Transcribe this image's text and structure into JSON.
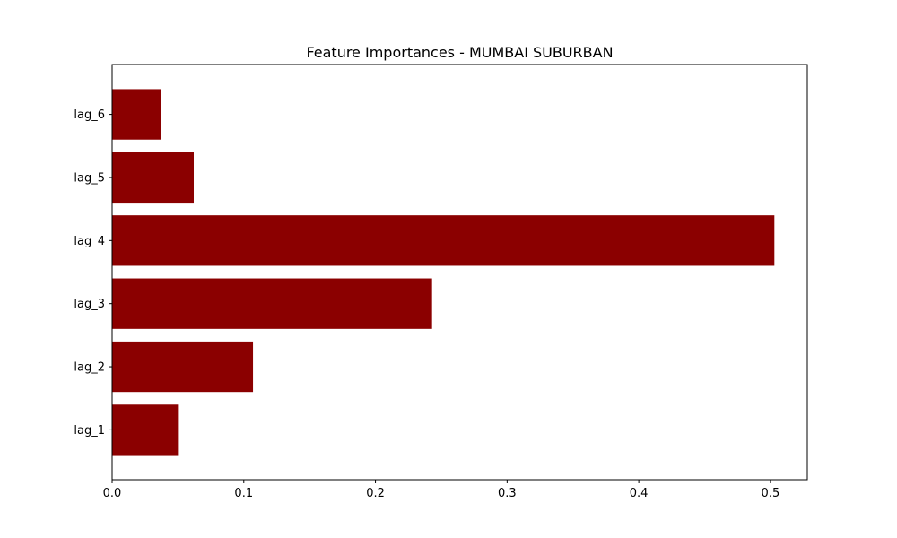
{
  "chart_data": {
    "type": "bar",
    "orientation": "horizontal",
    "title": "Feature Importances - MUMBAI SUBURBAN",
    "xlabel": "",
    "ylabel": "",
    "categories": [
      "lag_1",
      "lag_2",
      "lag_3",
      "lag_4",
      "lag_5",
      "lag_6"
    ],
    "values": [
      0.05,
      0.107,
      0.243,
      0.503,
      0.062,
      0.037
    ],
    "xlim": [
      0,
      0.528
    ],
    "xticks": [
      0.0,
      0.1,
      0.2,
      0.3,
      0.4,
      0.5
    ],
    "xtick_labels": [
      "0.0",
      "0.1",
      "0.2",
      "0.3",
      "0.4",
      "0.5"
    ],
    "grid": false,
    "bar_color": "#8b0000"
  }
}
